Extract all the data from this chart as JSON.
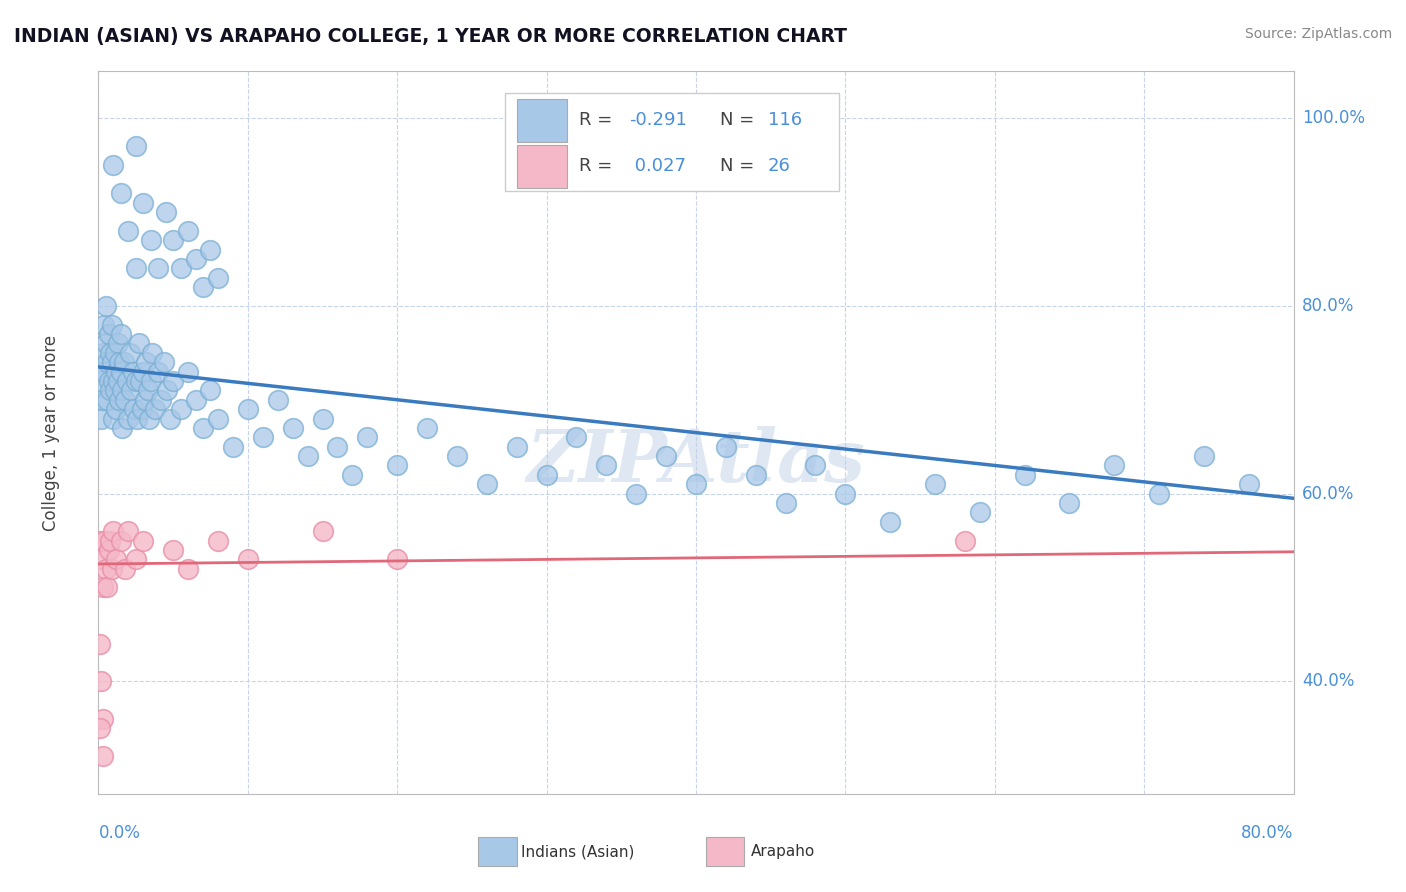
{
  "title": "INDIAN (ASIAN) VS ARAPAHO COLLEGE, 1 YEAR OR MORE CORRELATION CHART",
  "source_text": "Source: ZipAtlas.com",
  "ylabel": "College, 1 year or more",
  "xlim": [
    0.0,
    0.8
  ],
  "ylim": [
    0.28,
    1.05
  ],
  "blue_color": "#a8c8e8",
  "blue_edge_color": "#7aafd4",
  "pink_color": "#f5b8c8",
  "pink_edge_color": "#e890a8",
  "blue_line_color": "#3a7abf",
  "pink_line_color": "#e06878",
  "watermark": "ZIPAtlas",
  "background_color": "#ffffff",
  "grid_color": "#c8d4e8",
  "title_color": "#111122",
  "source_color": "#888888",
  "axis_label_color": "#4a90d9",
  "blue_scatter": [
    [
      0.001,
      0.72
    ],
    [
      0.002,
      0.68
    ],
    [
      0.003,
      0.75
    ],
    [
      0.003,
      0.7
    ],
    [
      0.004,
      0.78
    ],
    [
      0.004,
      0.73
    ],
    [
      0.005,
      0.8
    ],
    [
      0.005,
      0.76
    ],
    [
      0.006,
      0.74
    ],
    [
      0.006,
      0.7
    ],
    [
      0.007,
      0.77
    ],
    [
      0.007,
      0.72
    ],
    [
      0.008,
      0.75
    ],
    [
      0.008,
      0.71
    ],
    [
      0.009,
      0.78
    ],
    [
      0.009,
      0.74
    ],
    [
      0.01,
      0.72
    ],
    [
      0.01,
      0.68
    ],
    [
      0.011,
      0.75
    ],
    [
      0.011,
      0.71
    ],
    [
      0.012,
      0.73
    ],
    [
      0.012,
      0.69
    ],
    [
      0.013,
      0.76
    ],
    [
      0.013,
      0.72
    ],
    [
      0.014,
      0.74
    ],
    [
      0.014,
      0.7
    ],
    [
      0.015,
      0.77
    ],
    [
      0.015,
      0.73
    ],
    [
      0.016,
      0.71
    ],
    [
      0.016,
      0.67
    ],
    [
      0.017,
      0.74
    ],
    [
      0.018,
      0.7
    ],
    [
      0.019,
      0.72
    ],
    [
      0.02,
      0.68
    ],
    [
      0.021,
      0.75
    ],
    [
      0.022,
      0.71
    ],
    [
      0.023,
      0.73
    ],
    [
      0.024,
      0.69
    ],
    [
      0.025,
      0.72
    ],
    [
      0.026,
      0.68
    ],
    [
      0.027,
      0.76
    ],
    [
      0.028,
      0.72
    ],
    [
      0.029,
      0.69
    ],
    [
      0.03,
      0.73
    ],
    [
      0.031,
      0.7
    ],
    [
      0.032,
      0.74
    ],
    [
      0.033,
      0.71
    ],
    [
      0.034,
      0.68
    ],
    [
      0.035,
      0.72
    ],
    [
      0.036,
      0.75
    ],
    [
      0.038,
      0.69
    ],
    [
      0.04,
      0.73
    ],
    [
      0.042,
      0.7
    ],
    [
      0.044,
      0.74
    ],
    [
      0.046,
      0.71
    ],
    [
      0.048,
      0.68
    ],
    [
      0.05,
      0.72
    ],
    [
      0.055,
      0.69
    ],
    [
      0.06,
      0.73
    ],
    [
      0.065,
      0.7
    ],
    [
      0.07,
      0.67
    ],
    [
      0.075,
      0.71
    ],
    [
      0.08,
      0.68
    ],
    [
      0.09,
      0.65
    ],
    [
      0.1,
      0.69
    ],
    [
      0.11,
      0.66
    ],
    [
      0.12,
      0.7
    ],
    [
      0.13,
      0.67
    ],
    [
      0.14,
      0.64
    ],
    [
      0.15,
      0.68
    ],
    [
      0.16,
      0.65
    ],
    [
      0.17,
      0.62
    ],
    [
      0.18,
      0.66
    ],
    [
      0.2,
      0.63
    ],
    [
      0.22,
      0.67
    ],
    [
      0.24,
      0.64
    ],
    [
      0.26,
      0.61
    ],
    [
      0.28,
      0.65
    ],
    [
      0.3,
      0.62
    ],
    [
      0.32,
      0.66
    ],
    [
      0.34,
      0.63
    ],
    [
      0.36,
      0.6
    ],
    [
      0.38,
      0.64
    ],
    [
      0.4,
      0.61
    ],
    [
      0.42,
      0.65
    ],
    [
      0.44,
      0.62
    ],
    [
      0.46,
      0.59
    ],
    [
      0.48,
      0.63
    ],
    [
      0.5,
      0.6
    ],
    [
      0.53,
      0.57
    ],
    [
      0.56,
      0.61
    ],
    [
      0.59,
      0.58
    ],
    [
      0.62,
      0.62
    ],
    [
      0.65,
      0.59
    ],
    [
      0.68,
      0.63
    ],
    [
      0.71,
      0.6
    ],
    [
      0.74,
      0.64
    ],
    [
      0.77,
      0.61
    ],
    [
      0.02,
      0.88
    ],
    [
      0.025,
      0.84
    ],
    [
      0.03,
      0.91
    ],
    [
      0.035,
      0.87
    ],
    [
      0.04,
      0.84
    ],
    [
      0.045,
      0.9
    ],
    [
      0.05,
      0.87
    ],
    [
      0.055,
      0.84
    ],
    [
      0.06,
      0.88
    ],
    [
      0.065,
      0.85
    ],
    [
      0.07,
      0.82
    ],
    [
      0.075,
      0.86
    ],
    [
      0.08,
      0.83
    ],
    [
      0.01,
      0.95
    ],
    [
      0.015,
      0.92
    ],
    [
      0.025,
      0.97
    ]
  ],
  "pink_scatter": [
    [
      0.001,
      0.55
    ],
    [
      0.002,
      0.53
    ],
    [
      0.003,
      0.5
    ],
    [
      0.004,
      0.55
    ],
    [
      0.005,
      0.52
    ],
    [
      0.006,
      0.5
    ],
    [
      0.007,
      0.54
    ],
    [
      0.008,
      0.55
    ],
    [
      0.009,
      0.52
    ],
    [
      0.01,
      0.56
    ],
    [
      0.012,
      0.53
    ],
    [
      0.015,
      0.55
    ],
    [
      0.018,
      0.52
    ],
    [
      0.02,
      0.56
    ],
    [
      0.025,
      0.53
    ],
    [
      0.03,
      0.55
    ],
    [
      0.05,
      0.54
    ],
    [
      0.06,
      0.52
    ],
    [
      0.08,
      0.55
    ],
    [
      0.1,
      0.53
    ],
    [
      0.15,
      0.56
    ],
    [
      0.2,
      0.53
    ],
    [
      0.58,
      0.55
    ],
    [
      0.001,
      0.44
    ],
    [
      0.002,
      0.4
    ],
    [
      0.003,
      0.36
    ],
    [
      0.001,
      0.35
    ],
    [
      0.003,
      0.32
    ]
  ],
  "blue_trendline": [
    [
      0.0,
      0.735
    ],
    [
      0.8,
      0.595
    ]
  ],
  "pink_trendline": [
    [
      0.0,
      0.525
    ],
    [
      0.8,
      0.538
    ]
  ]
}
